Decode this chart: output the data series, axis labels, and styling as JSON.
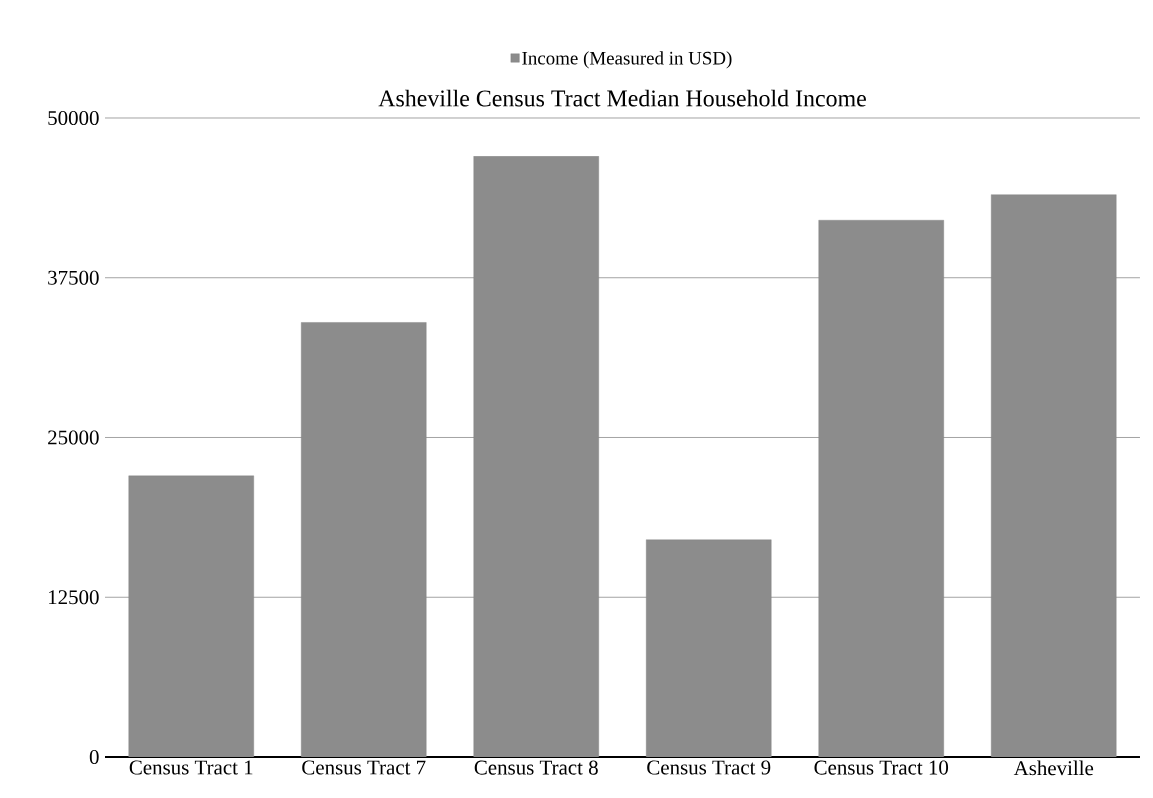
{
  "chart_data": {
    "type": "bar",
    "title": "Asheville Census Tract Median Household Income",
    "categories": [
      "Census Tract 1",
      "Census Tract 7",
      "Census Tract 8",
      "Census Tract 9",
      "Census Tract 10",
      "Asheville"
    ],
    "series": [
      {
        "name": "Income (Measured in USD)",
        "color": "#8c8c8c",
        "values": [
          22000,
          34000,
          47000,
          17000,
          42000,
          44000
        ]
      }
    ],
    "ylim": [
      0,
      50000
    ],
    "yticks": [
      0,
      12500,
      25000,
      37500,
      50000
    ],
    "grid": "y",
    "legend": "top"
  }
}
